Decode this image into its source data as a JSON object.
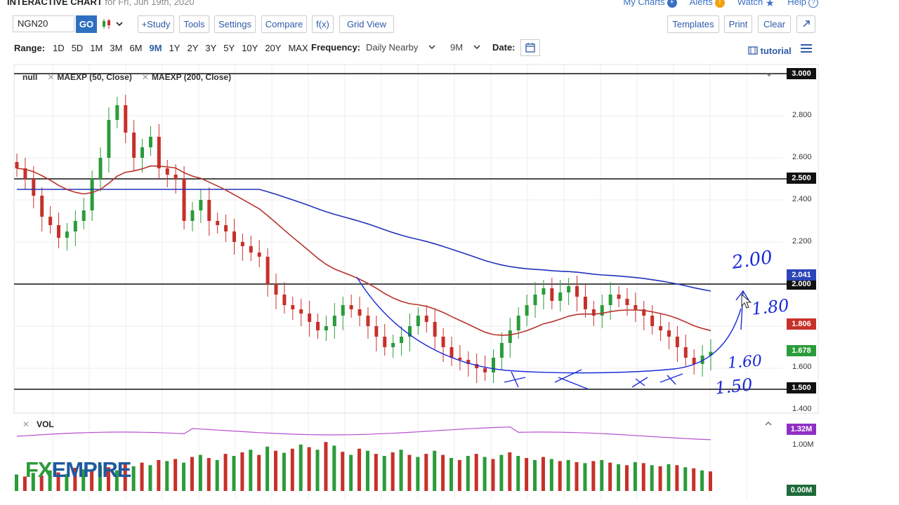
{
  "header": {
    "title": "INTERACTIVE CHART",
    "subtitle": "for Fri, Jun 19th, 2020",
    "links": [
      {
        "label": "My Charts",
        "icon": "+"
      },
      {
        "label": "Alerts",
        "icon": "!"
      },
      {
        "label": "Watch",
        "icon": "★"
      },
      {
        "label": "Help",
        "icon": "?"
      }
    ]
  },
  "toolbar": {
    "symbol": "NGN20",
    "go": "GO",
    "chart_type_icon": "candlestick-icon",
    "buttons": [
      "+Study",
      "Tools",
      "Settings",
      "Compare",
      "f(x)",
      "Grid View"
    ],
    "right_buttons": [
      "Templates",
      "Print",
      "Clear"
    ]
  },
  "rangebar": {
    "label": "Range:",
    "ranges": [
      "1D",
      "5D",
      "1M",
      "3M",
      "6M",
      "9M",
      "1Y",
      "2Y",
      "3Y",
      "5Y",
      "10Y",
      "20Y",
      "MAX"
    ],
    "active": "9M",
    "frequency_label": "Frequency:",
    "frequency_value": "Daily Nearby",
    "period_value": "9M",
    "date_label": "Date:",
    "tutorial": "tutorial"
  },
  "chart_legend": {
    "items": [
      "null",
      "MAEXP (50, Close)",
      "MAEXP (200, Close)"
    ]
  },
  "price_axis": {
    "ticks": [
      "2.800",
      "2.600",
      "2.400",
      "2.200",
      "1.600",
      "1.400"
    ],
    "tags": [
      {
        "value": "3.000",
        "color": "#111111"
      },
      {
        "value": "2.500",
        "color": "#111111"
      },
      {
        "value": "2.041",
        "color": "#2b45b8"
      },
      {
        "value": "2.000",
        "color": "#111111"
      },
      {
        "value": "1.806",
        "color": "#c8302a"
      },
      {
        "value": "1.678",
        "color": "#2a9c3a"
      },
      {
        "value": "1.500",
        "color": "#111111"
      }
    ]
  },
  "annotations": [
    "2.00",
    "1.80",
    "1.60",
    "1.50"
  ],
  "volume": {
    "label": "VOL",
    "ticks": [
      "1.00M"
    ],
    "tags": [
      {
        "value": "1.32M",
        "color": "#8f2fc4"
      },
      {
        "value": "0.00M",
        "color": "#1f6b3a"
      }
    ]
  },
  "logo": {
    "fx": "FX",
    "rest": "EMPIRE"
  },
  "chart_data": {
    "type": "candlestick",
    "symbol": "NGN20",
    "yrange": [
      1.4,
      3.0
    ],
    "horizontal_lines": [
      3.0,
      2.5,
      2.0,
      1.5
    ],
    "series": [
      {
        "name": "MAEXP (50, Close)",
        "color": "#b8332b"
      },
      {
        "name": "MAEXP (200, Close)",
        "color": "#2233bb"
      }
    ],
    "close_approx": [
      2.55,
      2.5,
      2.42,
      2.32,
      2.28,
      2.22,
      2.25,
      2.3,
      2.35,
      2.5,
      2.6,
      2.78,
      2.85,
      2.72,
      2.6,
      2.65,
      2.7,
      2.55,
      2.52,
      2.5,
      2.3,
      2.35,
      2.4,
      2.3,
      2.28,
      2.25,
      2.2,
      2.18,
      2.15,
      2.13,
      2.0,
      1.95,
      1.9,
      1.88,
      1.86,
      1.82,
      1.78,
      1.8,
      1.85,
      1.9,
      1.88,
      1.85,
      1.8,
      1.75,
      1.7,
      1.72,
      1.75,
      1.8,
      1.85,
      1.82,
      1.75,
      1.7,
      1.65,
      1.64,
      1.62,
      1.6,
      1.58,
      1.65,
      1.72,
      1.78,
      1.85,
      1.9,
      1.95,
      1.98,
      1.92,
      1.96,
      1.99,
      1.94,
      1.88,
      1.85,
      1.9,
      1.95,
      1.93,
      1.9,
      1.88,
      1.85,
      1.8,
      1.78,
      1.75,
      1.7,
      1.65,
      1.62,
      1.66,
      1.678
    ],
    "volume_approx": [
      0.32,
      0.28,
      0.35,
      0.3,
      0.4,
      0.36,
      0.33,
      0.45,
      0.42,
      0.38,
      0.5,
      0.46,
      0.4,
      0.52,
      0.48,
      0.55,
      0.5,
      0.6,
      0.58,
      0.62,
      0.55,
      0.66,
      0.7,
      0.64,
      0.6,
      0.72,
      0.68,
      0.75,
      0.8,
      0.7,
      0.86,
      0.78,
      0.74,
      0.82,
      0.9,
      0.85,
      0.8,
      0.95,
      0.88,
      0.76,
      0.7,
      0.82,
      0.78,
      0.72,
      0.68,
      0.75,
      0.8,
      0.7,
      0.66,
      0.72,
      0.78,
      0.7,
      0.64,
      0.6,
      0.68,
      0.72,
      0.66,
      0.62,
      0.7,
      0.75,
      0.68,
      0.64,
      0.6,
      0.66,
      0.62,
      0.58,
      0.6,
      0.56,
      0.54,
      0.58,
      0.6,
      0.55,
      0.52,
      0.5,
      0.56,
      0.54,
      0.5,
      0.48,
      0.52,
      0.5,
      0.46,
      0.44,
      0.4,
      0.38
    ]
  }
}
